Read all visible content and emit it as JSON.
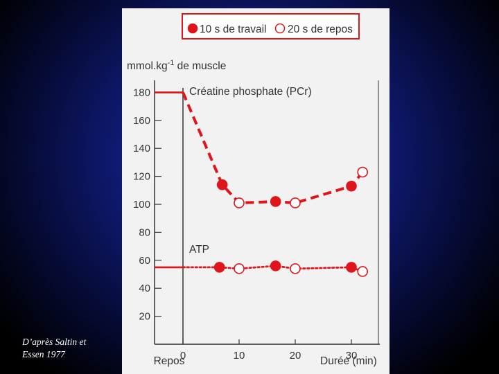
{
  "caption": {
    "line1": "D’après Saltin et",
    "line2": "Essen 1977"
  },
  "colors": {
    "series": "#e0141b",
    "axis": "#333333",
    "figure_bg": "#f2f2f2"
  },
  "chart_data": {
    "type": "line",
    "legend": {
      "placement": "top",
      "entries": [
        {
          "label": "10 s de travail",
          "marker": "filled-circle"
        },
        {
          "label": "20 s de repos",
          "marker": "open-circle"
        }
      ]
    },
    "ylabel": "mmol.kg",
    "ylabel_sup": "-1",
    "ylabel_suffix": " de muscle",
    "xlabel": "Durée (min)",
    "x_rest_label": "Repos",
    "xlim": [
      -5,
      35
    ],
    "ylim": [
      0,
      190
    ],
    "yticks": [
      20,
      40,
      60,
      80,
      100,
      120,
      140,
      160,
      180
    ],
    "xticks": [
      0,
      10,
      20,
      30
    ],
    "grid": false,
    "series": [
      {
        "name": "Créatine phosphate (PCr)",
        "line_style": "dashed",
        "rest_value": 180,
        "points": [
          {
            "x": 0,
            "y": 180,
            "marker": "none"
          },
          {
            "x": 7,
            "y": 114,
            "marker": "filled"
          },
          {
            "x": 10,
            "y": 101,
            "marker": "open"
          },
          {
            "x": 16.5,
            "y": 102,
            "marker": "filled"
          },
          {
            "x": 20,
            "y": 101,
            "marker": "open"
          },
          {
            "x": 30,
            "y": 113,
            "marker": "filled"
          },
          {
            "x": 32,
            "y": 123,
            "marker": "open"
          }
        ]
      },
      {
        "name": "ATP",
        "line_style": "dotted",
        "rest_value": 55,
        "points": [
          {
            "x": 0,
            "y": 55,
            "marker": "none"
          },
          {
            "x": 6.5,
            "y": 55,
            "marker": "filled"
          },
          {
            "x": 10,
            "y": 54,
            "marker": "open"
          },
          {
            "x": 16.5,
            "y": 56,
            "marker": "filled"
          },
          {
            "x": 20,
            "y": 54,
            "marker": "open"
          },
          {
            "x": 30,
            "y": 55,
            "marker": "filled"
          },
          {
            "x": 32,
            "y": 52,
            "marker": "open"
          }
        ]
      }
    ]
  }
}
